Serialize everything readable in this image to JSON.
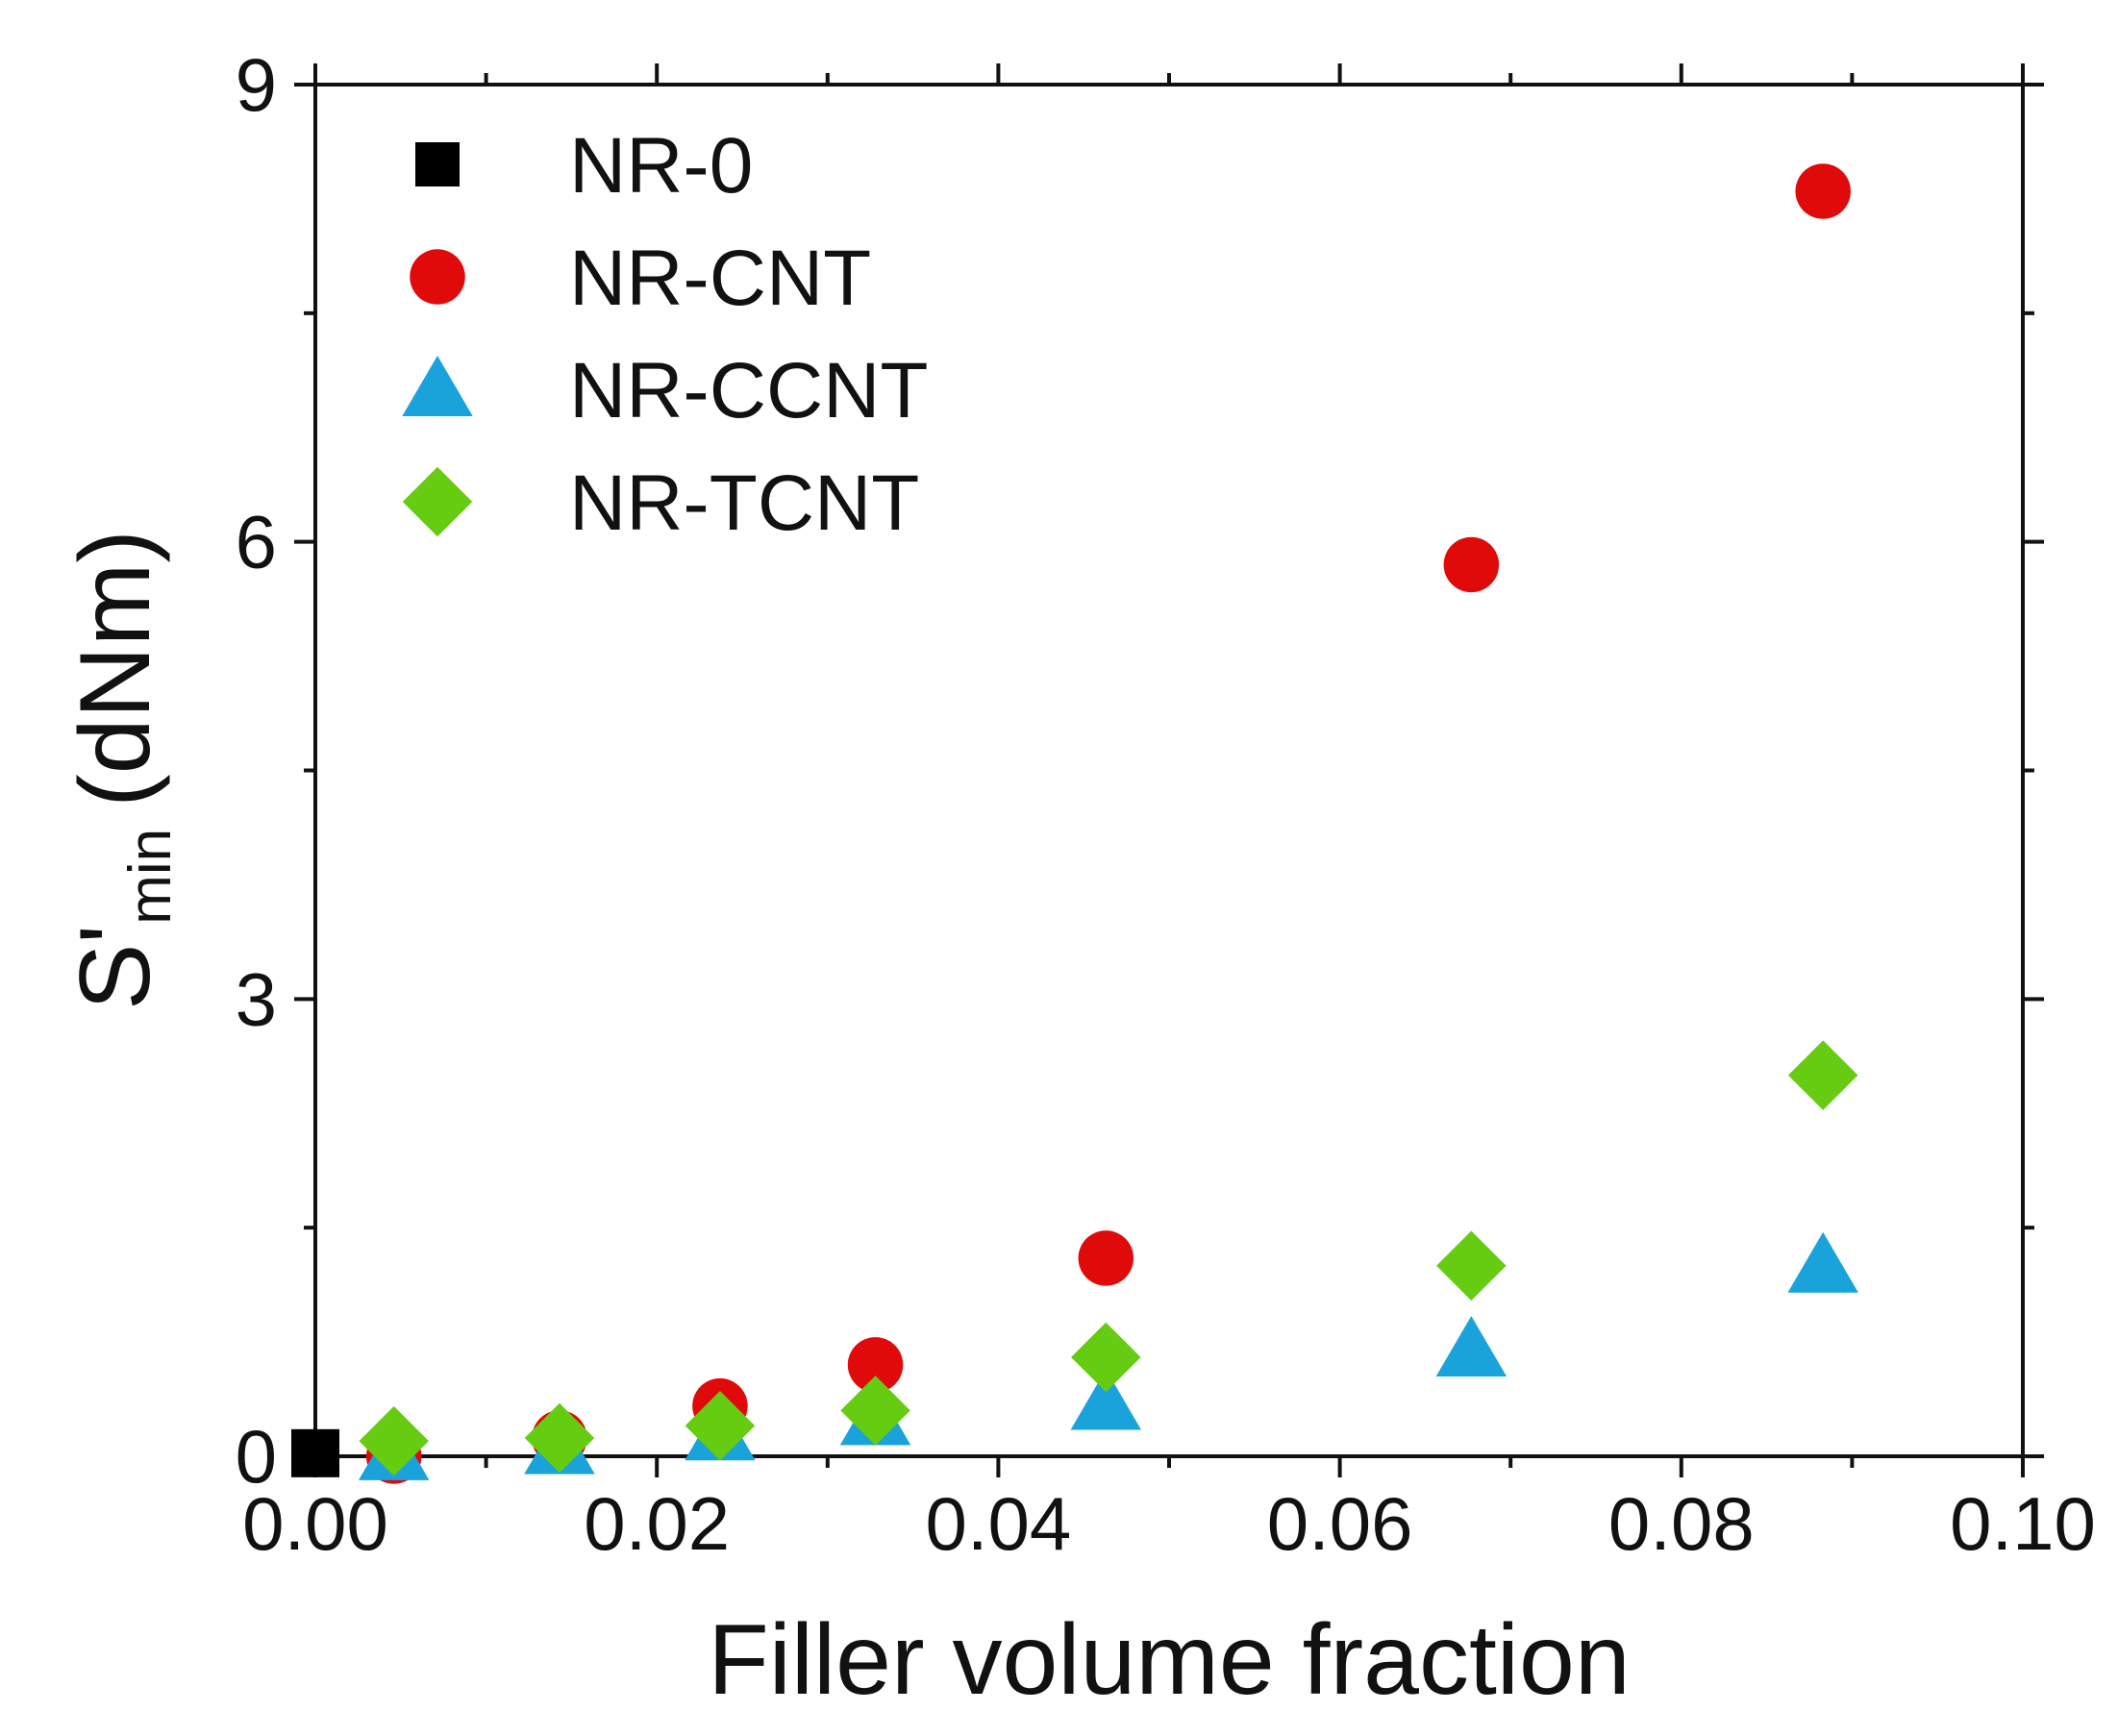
{
  "chart_data": {
    "type": "scatter",
    "title": "",
    "xlabel": "Filler volume fraction",
    "ylabel": {
      "main": "S'",
      "sub": "min",
      "unit": "(dNm)"
    },
    "xlim": [
      0,
      0.1
    ],
    "ylim": [
      0,
      9
    ],
    "x_ticks": [
      0.0,
      0.02,
      0.04,
      0.06,
      0.08,
      0.1
    ],
    "x_tick_labels": [
      "0.00",
      "0.02",
      "0.04",
      "0.06",
      "0.08",
      "0.10"
    ],
    "y_ticks": [
      0,
      3,
      6,
      9
    ],
    "y_tick_labels": [
      "0",
      "3",
      "6",
      "9"
    ],
    "x_minor_step": 0.01,
    "y_minor_step": 1.5,
    "legend_position": "top-left",
    "series": [
      {
        "name": "NR-0",
        "marker": "square",
        "color": "#000000",
        "points": [
          [
            0.0,
            0.02
          ]
        ]
      },
      {
        "name": "NR-CNT",
        "marker": "circle",
        "color": "#e00a0a",
        "points": [
          [
            0.0046,
            0.0
          ],
          [
            0.0143,
            0.12
          ],
          [
            0.0237,
            0.33
          ],
          [
            0.0328,
            0.6
          ],
          [
            0.0463,
            1.3
          ],
          [
            0.0677,
            5.85
          ],
          [
            0.0883,
            8.3
          ]
        ]
      },
      {
        "name": "NR-CCNT",
        "marker": "triangle",
        "color": "#1aa3db",
        "points": [
          [
            0.0046,
            0.02
          ],
          [
            0.0143,
            0.06
          ],
          [
            0.0237,
            0.15
          ],
          [
            0.0328,
            0.25
          ],
          [
            0.0463,
            0.35
          ],
          [
            0.0677,
            0.7
          ],
          [
            0.0883,
            1.25
          ]
        ]
      },
      {
        "name": "NR-TCNT",
        "marker": "diamond",
        "color": "#66cc11",
        "points": [
          [
            0.0046,
            0.1
          ],
          [
            0.0143,
            0.12
          ],
          [
            0.0237,
            0.2
          ],
          [
            0.0328,
            0.3
          ],
          [
            0.0463,
            0.65
          ],
          [
            0.0677,
            1.25
          ],
          [
            0.0883,
            2.5
          ]
        ]
      }
    ]
  }
}
